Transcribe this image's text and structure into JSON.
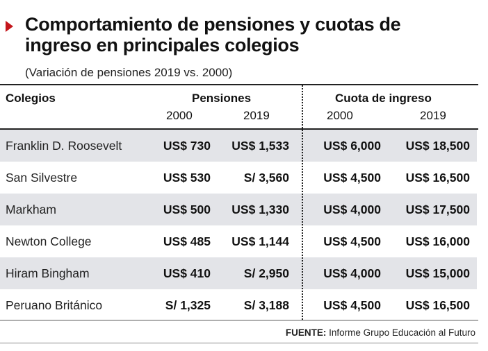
{
  "header": {
    "title": "Comportamiento de pensiones y cuotas de ingreso en principales colegios",
    "subtitle": "(Variación de pensiones 2019 vs. 2000)"
  },
  "table": {
    "col_school": "Colegios",
    "group_pensiones": "Pensiones",
    "group_cuota": "Cuota de ingreso",
    "year_2000": "2000",
    "year_2019": "2019",
    "rows": [
      {
        "name": "Franklin D. Roosevelt",
        "pen_2000": "US$ 730",
        "pen_2019": "US$ 1,533",
        "cuota_2000": "US$ 6,000",
        "cuota_2019": "US$ 18,500"
      },
      {
        "name": "San Silvestre",
        "pen_2000": "US$ 530",
        "pen_2019": "S/ 3,560",
        "cuota_2000": "US$ 4,500",
        "cuota_2019": "US$ 16,500"
      },
      {
        "name": "Markham",
        "pen_2000": "US$ 500",
        "pen_2019": "US$ 1,330",
        "cuota_2000": "US$ 4,000",
        "cuota_2019": "US$ 17,500"
      },
      {
        "name": "Newton College",
        "pen_2000": "US$ 485",
        "pen_2019": "US$ 1,144",
        "cuota_2000": "US$ 4,500",
        "cuota_2019": "US$ 16,000"
      },
      {
        "name": "Hiram Bingham",
        "pen_2000": "US$ 410",
        "pen_2019": "S/ 2,950",
        "cuota_2000": "US$ 4,000",
        "cuota_2019": "US$ 15,000"
      },
      {
        "name": "Peruano Británico",
        "pen_2000": "S/ 1,325",
        "pen_2019": "S/ 3,188",
        "cuota_2000": "US$ 4,500",
        "cuota_2019": "US$ 16,500"
      }
    ]
  },
  "footer": {
    "source_label": "FUENTE:",
    "source_text": "Informe Grupo Educación al Futuro"
  },
  "colors": {
    "accent": "#c4161c",
    "row_shade": "#e3e4e8"
  }
}
